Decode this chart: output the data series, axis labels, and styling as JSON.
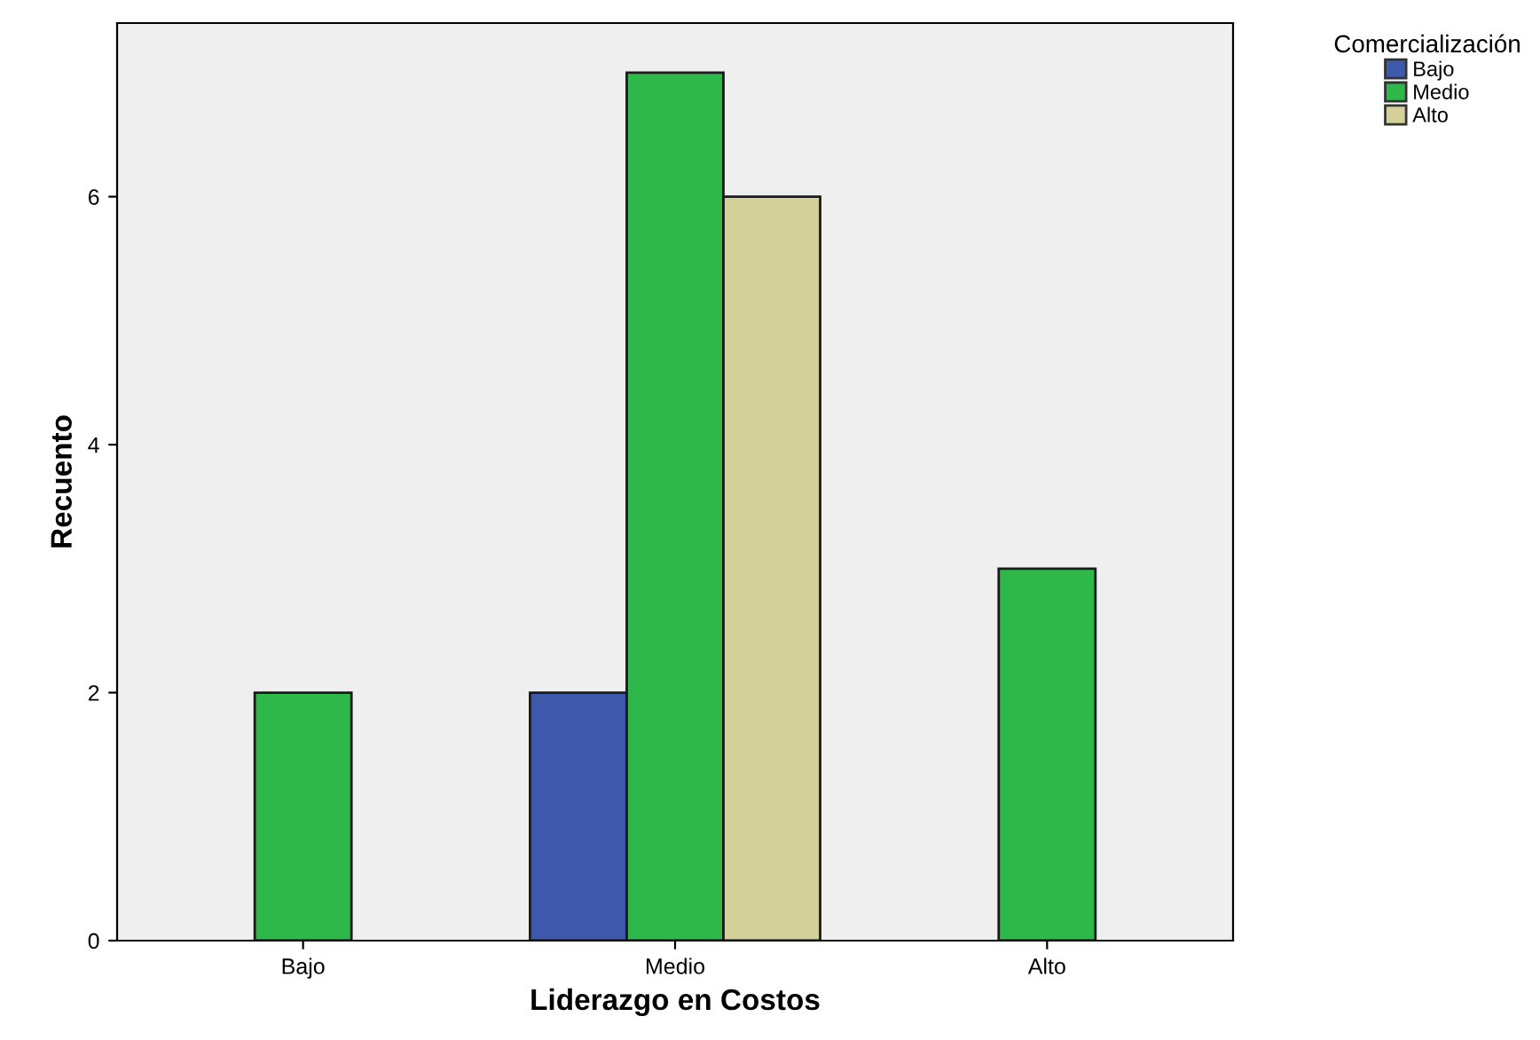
{
  "chart_data": {
    "type": "bar",
    "xlabel": "Liderazgo en Costos",
    "ylabel": "Recuento",
    "legend_title": "Comercialización",
    "categories": [
      "Bajo",
      "Medio",
      "Alto"
    ],
    "series": [
      {
        "name": "Bajo",
        "color": "#3e58ac",
        "values": [
          null,
          2,
          null
        ]
      },
      {
        "name": "Medio",
        "color": "#2fb84a",
        "values": [
          2,
          7,
          3
        ]
      },
      {
        "name": "Alto",
        "color": "#d4d099",
        "values": [
          null,
          6,
          null
        ]
      }
    ],
    "ylim": [
      0,
      7.4
    ],
    "yticks": [
      0,
      2,
      4,
      6
    ],
    "grid": false,
    "legend": "top right"
  }
}
